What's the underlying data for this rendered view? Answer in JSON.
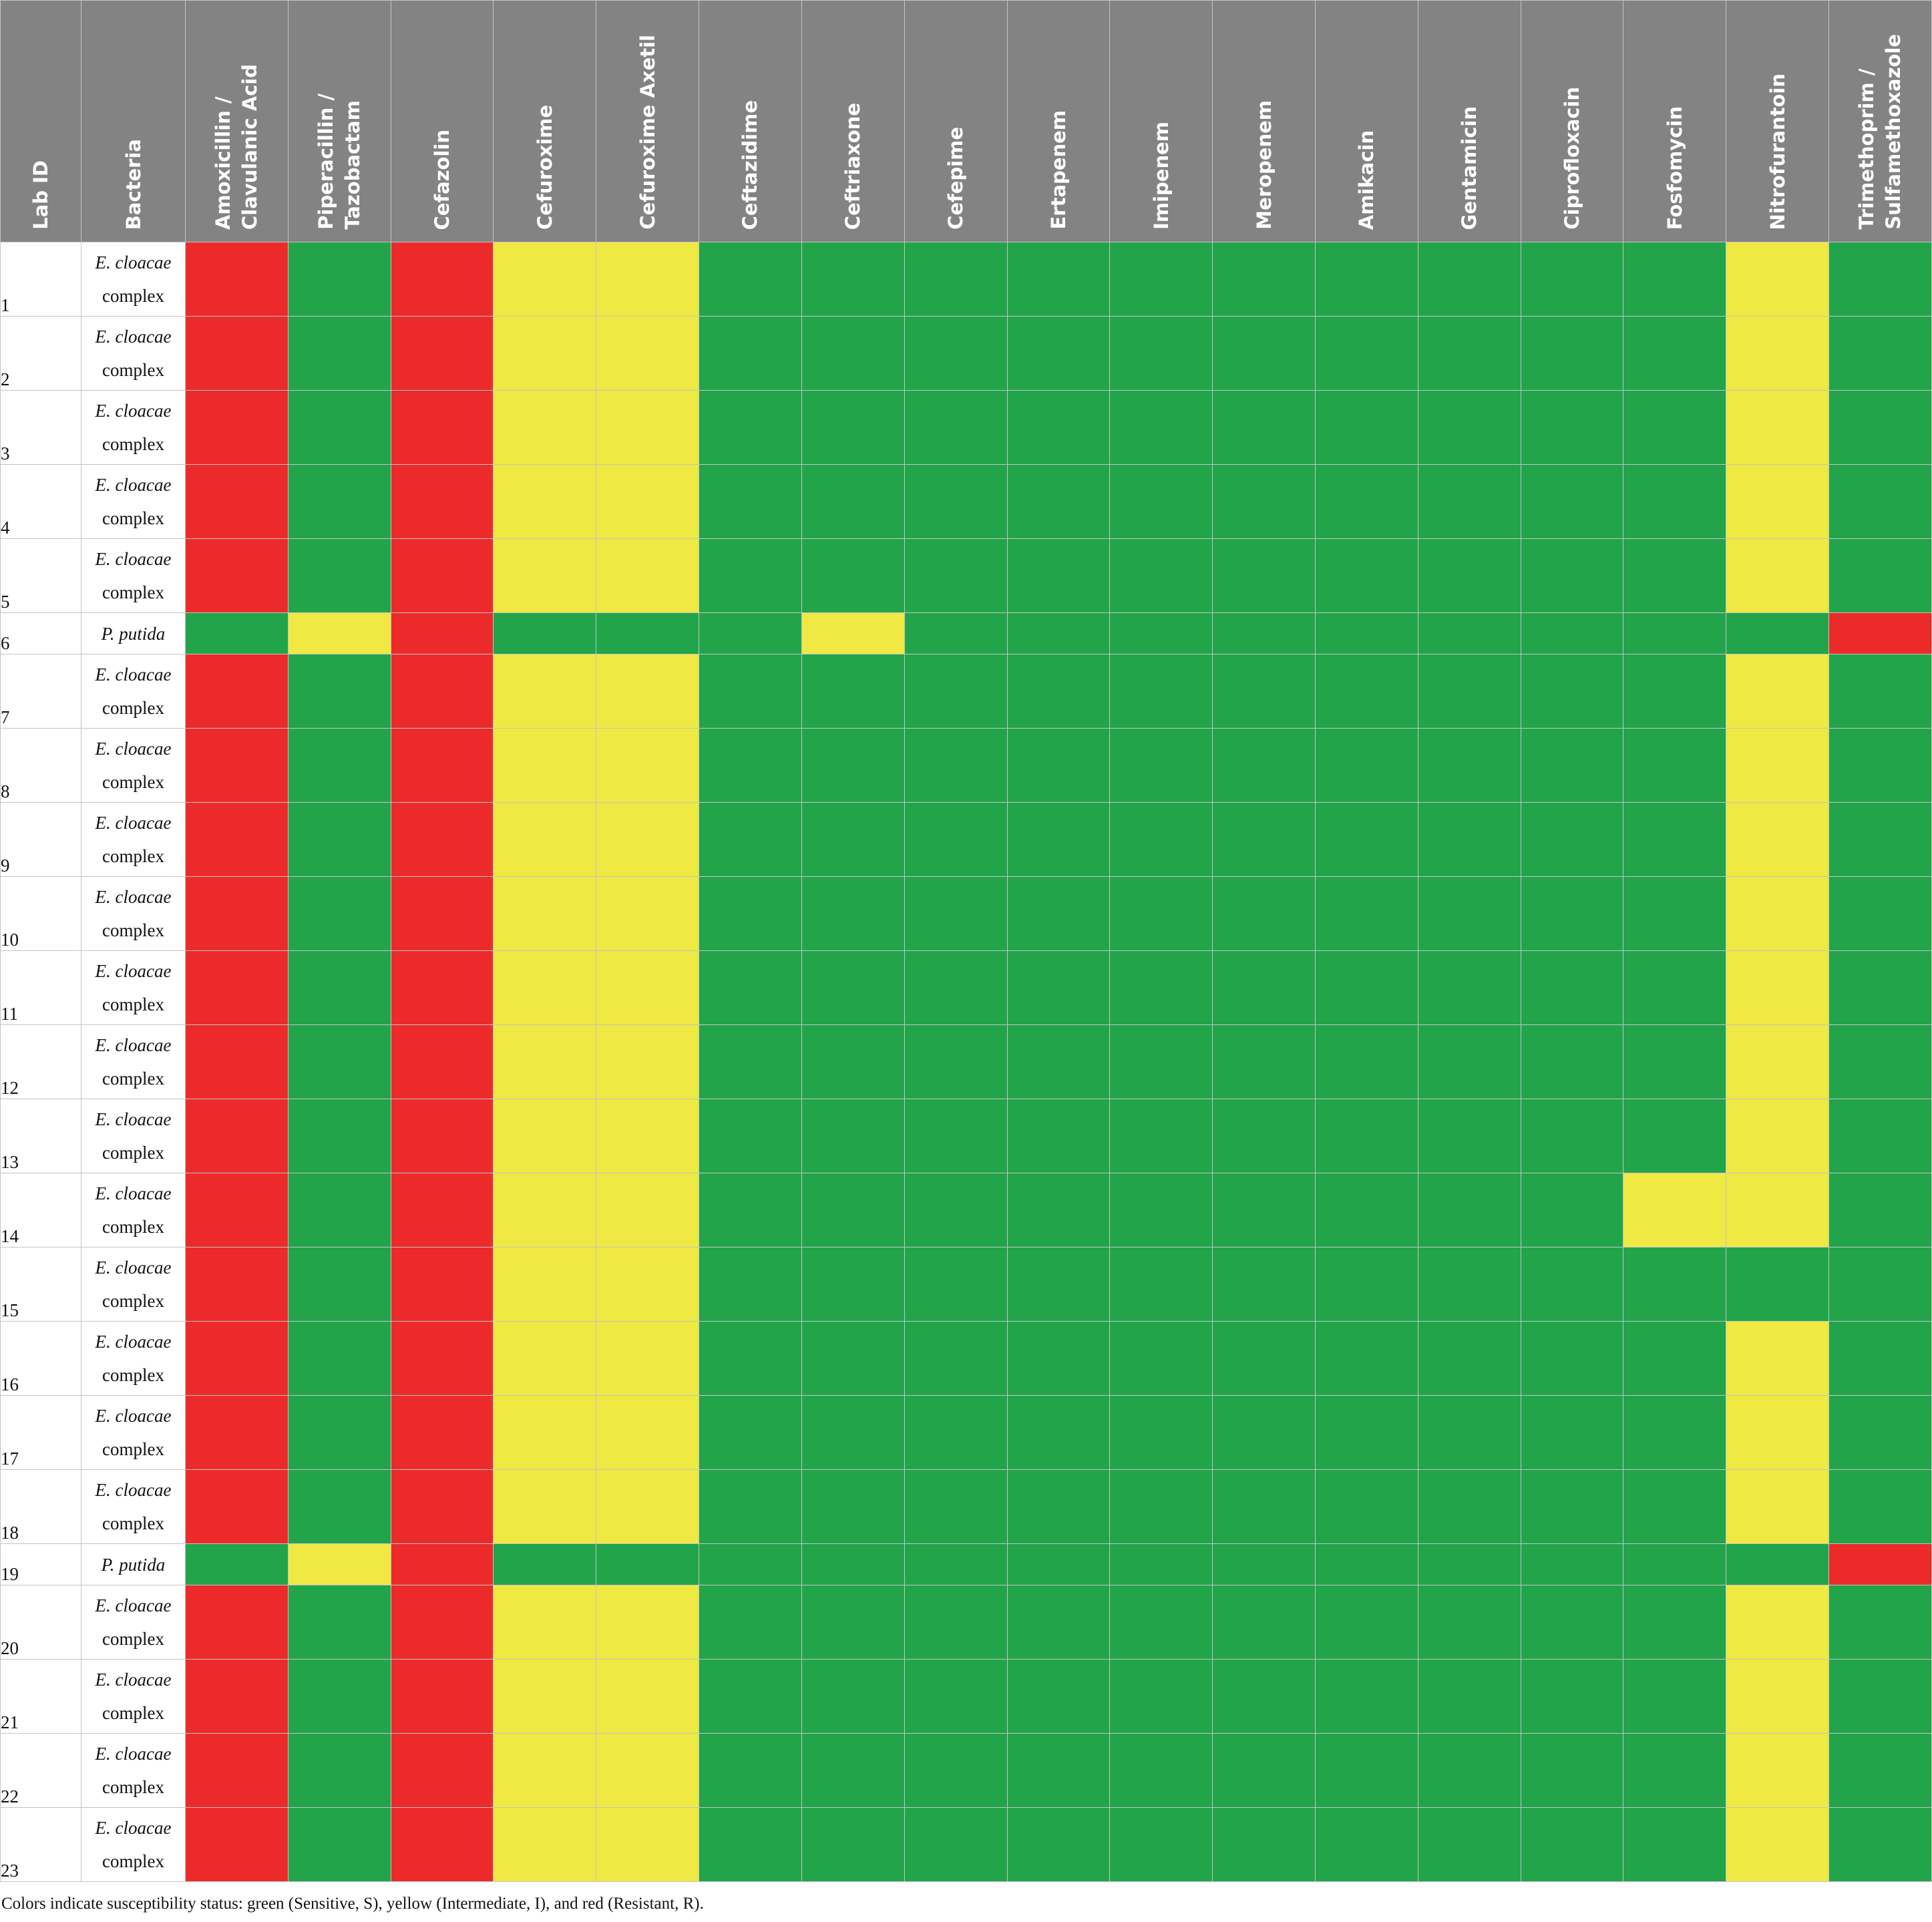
{
  "table": {
    "headers": {
      "lab_id": "Lab ID",
      "bacteria": "Bacteria",
      "antibiotics": [
        "Amoxicillin /\nClavulanic Acid",
        "Piperacillin /\nTazobactam",
        "Cefazolin",
        "Cefuroxime",
        "Cefuroxime Axetil",
        "Ceftazidime",
        "Ceftriaxone",
        "Cefepime",
        "Ertapenem",
        "Imipenem",
        "Meropenem",
        "Amikacin",
        "Gentamicin",
        "Ciprofloxacin",
        "Fosfomycin",
        "Nitrofurantoin",
        "Trimethoprim /\nSulfamethoxazole"
      ]
    },
    "colors": {
      "S": "#22a44a",
      "I": "#f0e843",
      "R": "#ec2a2a"
    },
    "rows": [
      {
        "id": "1",
        "species": "E. cloacae",
        "suffix": "complex",
        "results": [
          "R",
          "S",
          "R",
          "I",
          "I",
          "S",
          "S",
          "S",
          "S",
          "S",
          "S",
          "S",
          "S",
          "S",
          "S",
          "I",
          "S"
        ]
      },
      {
        "id": "2",
        "species": "E. cloacae",
        "suffix": "complex",
        "results": [
          "R",
          "S",
          "R",
          "I",
          "I",
          "S",
          "S",
          "S",
          "S",
          "S",
          "S",
          "S",
          "S",
          "S",
          "S",
          "I",
          "S"
        ]
      },
      {
        "id": "3",
        "species": "E. cloacae",
        "suffix": "complex",
        "results": [
          "R",
          "S",
          "R",
          "I",
          "I",
          "S",
          "S",
          "S",
          "S",
          "S",
          "S",
          "S",
          "S",
          "S",
          "S",
          "I",
          "S"
        ]
      },
      {
        "id": "4",
        "species": "E. cloacae",
        "suffix": "complex",
        "results": [
          "R",
          "S",
          "R",
          "I",
          "I",
          "S",
          "S",
          "S",
          "S",
          "S",
          "S",
          "S",
          "S",
          "S",
          "S",
          "I",
          "S"
        ]
      },
      {
        "id": "5",
        "species": "E. cloacae",
        "suffix": "complex",
        "results": [
          "R",
          "S",
          "R",
          "I",
          "I",
          "S",
          "S",
          "S",
          "S",
          "S",
          "S",
          "S",
          "S",
          "S",
          "S",
          "I",
          "S"
        ]
      },
      {
        "id": "6",
        "species": "P. putida",
        "suffix": "",
        "results": [
          "S",
          "I",
          "R",
          "S",
          "S",
          "S",
          "I",
          "S",
          "S",
          "S",
          "S",
          "S",
          "S",
          "S",
          "S",
          "S",
          "R"
        ]
      },
      {
        "id": "7",
        "species": "E. cloacae",
        "suffix": "complex",
        "results": [
          "R",
          "S",
          "R",
          "I",
          "I",
          "S",
          "S",
          "S",
          "S",
          "S",
          "S",
          "S",
          "S",
          "S",
          "S",
          "I",
          "S"
        ]
      },
      {
        "id": "8",
        "species": "E. cloacae",
        "suffix": "complex",
        "results": [
          "R",
          "S",
          "R",
          "I",
          "I",
          "S",
          "S",
          "S",
          "S",
          "S",
          "S",
          "S",
          "S",
          "S",
          "S",
          "I",
          "S"
        ]
      },
      {
        "id": "9",
        "species": "E. cloacae",
        "suffix": "complex",
        "results": [
          "R",
          "S",
          "R",
          "I",
          "I",
          "S",
          "S",
          "S",
          "S",
          "S",
          "S",
          "S",
          "S",
          "S",
          "S",
          "I",
          "S"
        ]
      },
      {
        "id": "10",
        "species": "E. cloacae",
        "suffix": "complex",
        "results": [
          "R",
          "S",
          "R",
          "I",
          "I",
          "S",
          "S",
          "S",
          "S",
          "S",
          "S",
          "S",
          "S",
          "S",
          "S",
          "I",
          "S"
        ]
      },
      {
        "id": "11",
        "species": "E. cloacae",
        "suffix": "complex",
        "results": [
          "R",
          "S",
          "R",
          "I",
          "I",
          "S",
          "S",
          "S",
          "S",
          "S",
          "S",
          "S",
          "S",
          "S",
          "S",
          "I",
          "S"
        ]
      },
      {
        "id": "12",
        "species": "E. cloacae",
        "suffix": "complex",
        "results": [
          "R",
          "S",
          "R",
          "I",
          "I",
          "S",
          "S",
          "S",
          "S",
          "S",
          "S",
          "S",
          "S",
          "S",
          "S",
          "I",
          "S"
        ]
      },
      {
        "id": "13",
        "species": "E. cloacae",
        "suffix": "complex",
        "results": [
          "R",
          "S",
          "R",
          "I",
          "I",
          "S",
          "S",
          "S",
          "S",
          "S",
          "S",
          "S",
          "S",
          "S",
          "S",
          "I",
          "S"
        ]
      },
      {
        "id": "14",
        "species": "E. cloacae",
        "suffix": "complex",
        "results": [
          "R",
          "S",
          "R",
          "I",
          "I",
          "S",
          "S",
          "S",
          "S",
          "S",
          "S",
          "S",
          "S",
          "S",
          "I",
          "I",
          "S"
        ]
      },
      {
        "id": "15",
        "species": "E. cloacae",
        "suffix": "complex",
        "results": [
          "R",
          "S",
          "R",
          "I",
          "I",
          "S",
          "S",
          "S",
          "S",
          "S",
          "S",
          "S",
          "S",
          "S",
          "S",
          "S",
          "S"
        ]
      },
      {
        "id": "16",
        "species": "E. cloacae",
        "suffix": "complex",
        "results": [
          "R",
          "S",
          "R",
          "I",
          "I",
          "S",
          "S",
          "S",
          "S",
          "S",
          "S",
          "S",
          "S",
          "S",
          "S",
          "I",
          "S"
        ]
      },
      {
        "id": "17",
        "species": "E. cloacae",
        "suffix": "complex",
        "results": [
          "R",
          "S",
          "R",
          "I",
          "I",
          "S",
          "S",
          "S",
          "S",
          "S",
          "S",
          "S",
          "S",
          "S",
          "S",
          "I",
          "S"
        ]
      },
      {
        "id": "18",
        "species": "E. cloacae",
        "suffix": "complex",
        "results": [
          "R",
          "S",
          "R",
          "I",
          "I",
          "S",
          "S",
          "S",
          "S",
          "S",
          "S",
          "S",
          "S",
          "S",
          "S",
          "I",
          "S"
        ]
      },
      {
        "id": "19",
        "species": "P. putida",
        "suffix": "",
        "results": [
          "S",
          "I",
          "R",
          "S",
          "S",
          "S",
          "S",
          "S",
          "S",
          "S",
          "S",
          "S",
          "S",
          "S",
          "S",
          "S",
          "R"
        ]
      },
      {
        "id": "20",
        "species": "E. cloacae",
        "suffix": "complex",
        "results": [
          "R",
          "S",
          "R",
          "I",
          "I",
          "S",
          "S",
          "S",
          "S",
          "S",
          "S",
          "S",
          "S",
          "S",
          "S",
          "I",
          "S"
        ]
      },
      {
        "id": "21",
        "species": "E. cloacae",
        "suffix": "complex",
        "results": [
          "R",
          "S",
          "R",
          "I",
          "I",
          "S",
          "S",
          "S",
          "S",
          "S",
          "S",
          "S",
          "S",
          "S",
          "S",
          "I",
          "S"
        ]
      },
      {
        "id": "22",
        "species": "E. cloacae",
        "suffix": "complex",
        "results": [
          "R",
          "S",
          "R",
          "I",
          "I",
          "S",
          "S",
          "S",
          "S",
          "S",
          "S",
          "S",
          "S",
          "S",
          "S",
          "I",
          "S"
        ]
      },
      {
        "id": "23",
        "species": "E. cloacae",
        "suffix": "complex",
        "results": [
          "R",
          "S",
          "R",
          "I",
          "I",
          "S",
          "S",
          "S",
          "S",
          "S",
          "S",
          "S",
          "S",
          "S",
          "S",
          "I",
          "S"
        ]
      }
    ]
  },
  "footnote": "Colors indicate susceptibility status: green (Sensitive, S), yellow (Intermediate, I), and red (Resistant, R)."
}
